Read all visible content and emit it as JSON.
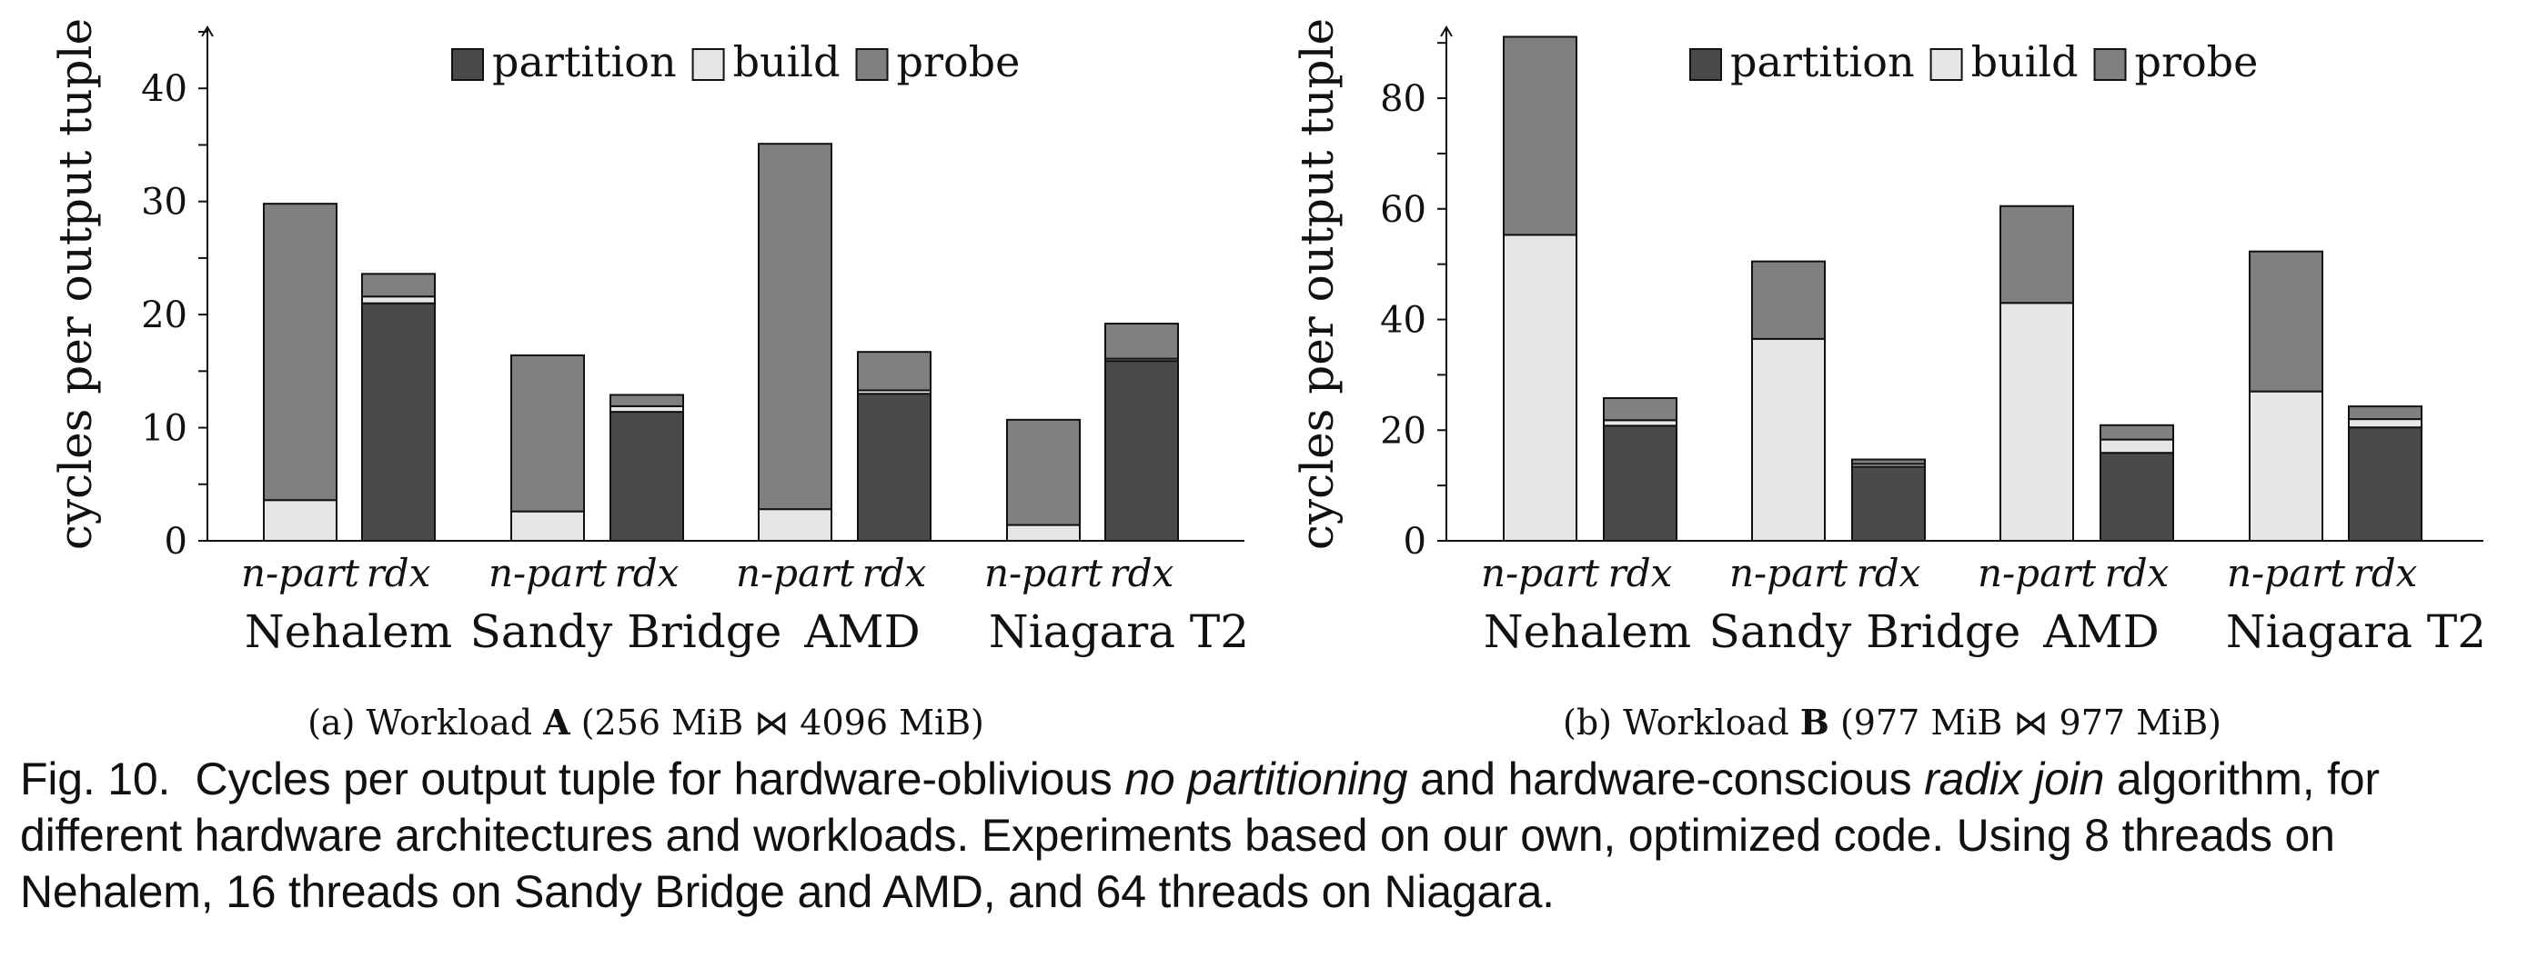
{
  "figure": {
    "caption": {
      "prefix": "Fig. 10.",
      "p1": "Cycles per output tuple for hardware-oblivious ",
      "em1": "no partitioning",
      "p2": " and hardware-conscious ",
      "em2": "radix join",
      "p3": " algorithm, for different hardware architectures and workloads. Experiments based on our own, optimized code. Using 8 threads on Nehalem, 16 threads on Sandy Bridge and AMD, and 64 threads on Niagara."
    }
  },
  "colors": {
    "partition": "#4a4a4a",
    "build": "#e6e6e6",
    "probe": "#808080"
  },
  "chart_data": [
    {
      "type": "bar",
      "stacked": true,
      "subcaption": {
        "prefix": "(a)  Workload ",
        "bold": "A",
        "rest": " (256 MiB ⋈ 4096 MiB)"
      },
      "ylabel": "cycles per output tuple",
      "ylim": [
        0,
        45
      ],
      "yticks": [
        0,
        10,
        20,
        30,
        40
      ],
      "legend": {
        "position": "top-center",
        "entries": [
          "partition",
          "build",
          "probe"
        ]
      },
      "groups": [
        "Nehalem",
        "Sandy Bridge",
        "AMD",
        "Niagara T2"
      ],
      "bar_labels": [
        "n-part",
        "rdx"
      ],
      "series_order": [
        "partition",
        "build",
        "probe"
      ],
      "bars": [
        {
          "group": "Nehalem",
          "label": "n-part",
          "partition": 0,
          "build": 3.6,
          "probe": 26.2
        },
        {
          "group": "Nehalem",
          "label": "rdx",
          "partition": 21.0,
          "build": 0.6,
          "probe": 2.0
        },
        {
          "group": "Sandy Bridge",
          "label": "n-part",
          "partition": 0,
          "build": 2.6,
          "probe": 13.8
        },
        {
          "group": "Sandy Bridge",
          "label": "rdx",
          "partition": 11.4,
          "build": 0.5,
          "probe": 1.0
        },
        {
          "group": "AMD",
          "label": "n-part",
          "partition": 0,
          "build": 2.8,
          "probe": 32.3
        },
        {
          "group": "AMD",
          "label": "rdx",
          "partition": 13.0,
          "build": 0.3,
          "probe": 3.4
        },
        {
          "group": "Niagara T2",
          "label": "n-part",
          "partition": 0,
          "build": 1.4,
          "probe": 9.3
        },
        {
          "group": "Niagara T2",
          "label": "rdx",
          "partition": 15.9,
          "build": 0.2,
          "probe": 3.1
        }
      ]
    },
    {
      "type": "bar",
      "stacked": true,
      "subcaption": {
        "prefix": "(b)  Workload ",
        "bold": "B",
        "rest": " (977 MiB ⋈ 977 MiB)"
      },
      "ylabel": "cycles per output tuple",
      "ylim": [
        0,
        92
      ],
      "yticks": [
        0,
        20,
        40,
        60,
        80
      ],
      "legend": {
        "position": "top-center",
        "entries": [
          "partition",
          "build",
          "probe"
        ]
      },
      "groups": [
        "Nehalem",
        "Sandy Bridge",
        "AMD",
        "Niagara T2"
      ],
      "bar_labels": [
        "n-part",
        "rdx"
      ],
      "series_order": [
        "partition",
        "build",
        "probe"
      ],
      "bars": [
        {
          "group": "Nehalem",
          "label": "n-part",
          "partition": 0,
          "build": 55.3,
          "probe": 35.8
        },
        {
          "group": "Nehalem",
          "label": "rdx",
          "partition": 20.8,
          "build": 1.0,
          "probe": 4.0
        },
        {
          "group": "Sandy Bridge",
          "label": "n-part",
          "partition": 0,
          "build": 36.5,
          "probe": 14.0
        },
        {
          "group": "Sandy Bridge",
          "label": "rdx",
          "partition": 13.4,
          "build": 0.5,
          "probe": 0.8
        },
        {
          "group": "AMD",
          "label": "n-part",
          "partition": 0,
          "build": 43.0,
          "probe": 17.5
        },
        {
          "group": "AMD",
          "label": "rdx",
          "partition": 15.9,
          "build": 2.4,
          "probe": 2.6
        },
        {
          "group": "Niagara T2",
          "label": "n-part",
          "partition": 0,
          "build": 27.0,
          "probe": 25.3
        },
        {
          "group": "Niagara T2",
          "label": "rdx",
          "partition": 20.5,
          "build": 1.5,
          "probe": 2.3
        }
      ]
    }
  ]
}
